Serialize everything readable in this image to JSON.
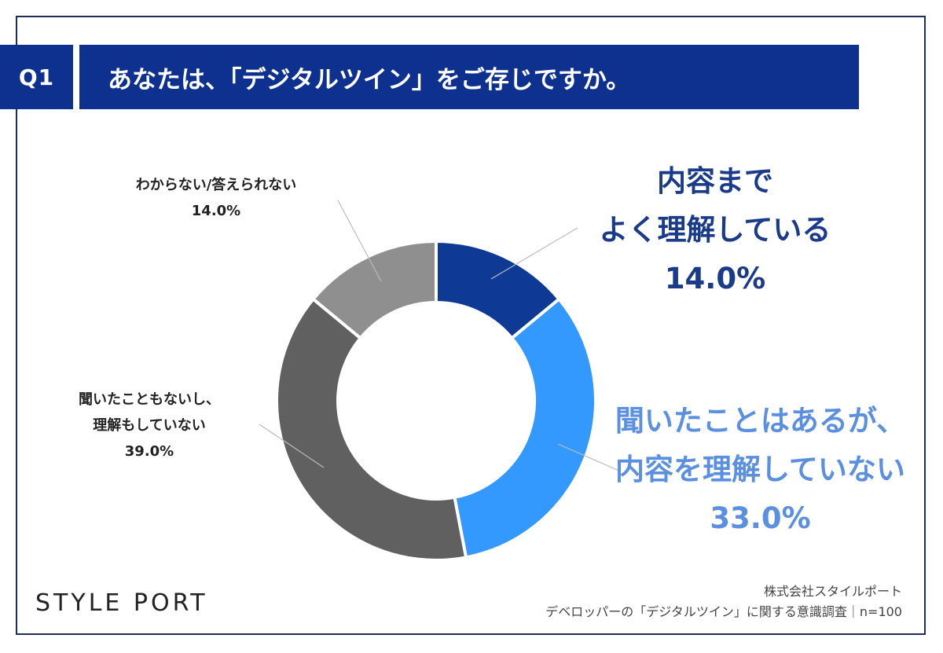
{
  "header": {
    "q_label": "Q1",
    "question": "あなたは、「デジタルツイン」をご存じですか。"
  },
  "labels": {
    "slice1": {
      "line1": "内容まで",
      "line2": "よく理解している",
      "pct": "14.0%"
    },
    "slice2": {
      "line1": "聞いたことはあるが、",
      "line2": "内容を理解していない",
      "pct": "33.0%"
    },
    "slice3": {
      "line1": "聞いたこともないし、",
      "line2": "理解もしていない",
      "pct": "39.0%"
    },
    "slice4": {
      "line1": "わからない/答えられない",
      "pct": "14.0%"
    }
  },
  "logo": "STYLE PORT",
  "footer": {
    "company": "株式会社スタイルポート",
    "survey": "デベロッパーの「デジタルツイン」に関する意識調査｜n=100"
  },
  "chart_data": {
    "type": "pie",
    "donut": true,
    "categories": [
      "内容までよく理解している",
      "聞いたことはあるが、内容を理解していない",
      "聞いたこともないし、理解もしていない",
      "わからない/答えられない"
    ],
    "values": [
      14.0,
      33.0,
      39.0,
      14.0
    ],
    "colors": [
      "#0e3a96",
      "#3399ff",
      "#606060",
      "#8f8f8f"
    ],
    "start": "top",
    "direction": "clockwise"
  }
}
